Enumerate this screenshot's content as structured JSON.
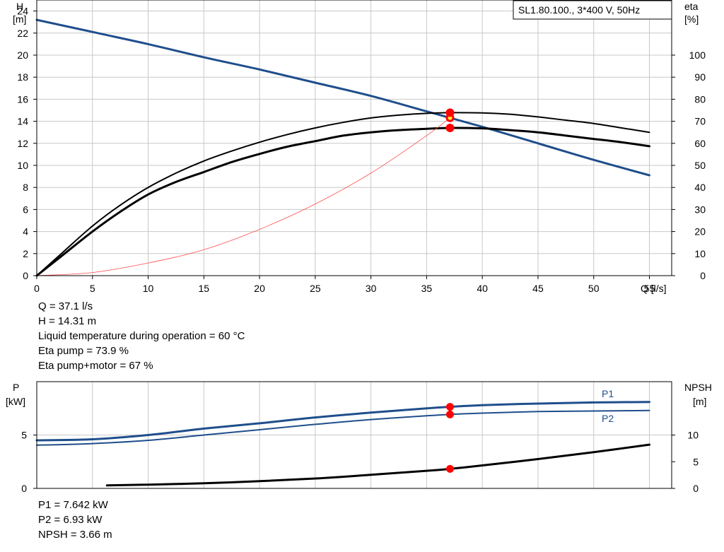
{
  "title": "SL1.80.100., 3*400 V, 50Hz",
  "colors": {
    "head": "#1f4e8c",
    "power": "#1f4e8c",
    "curve": "#000000",
    "system": "#ff4d4d",
    "marker": "#ff0000",
    "marker_center": "#ffeb3b",
    "grid": "#c8c8c8"
  },
  "operating_point": {
    "lines": [
      "Q = 37.1 l/s",
      "H = 14.31 m",
      "Liquid temperature during operation = 60 °C",
      "Eta pump = 73.9 %",
      "Eta pump+motor = 67 %"
    ]
  },
  "power_point": {
    "lines": [
      "P1 = 7.642 kW",
      "P2 = 6.93 kW",
      "NPSH = 3.66 m"
    ]
  },
  "chart_data": [
    {
      "type": "line",
      "y_left_label_top": "H",
      "y_left_label_bottom": "[m]",
      "y_right_label_top": "eta",
      "y_right_label_bottom": "[%]",
      "xlabel": "Q [l/s]",
      "xlim": [
        0,
        57
      ],
      "ylim": [
        0,
        25
      ],
      "y2lim": [
        0,
        125
      ],
      "xticks": [
        "0",
        "5",
        "10",
        "15",
        "20",
        "25",
        "30",
        "35",
        "40",
        "45",
        "50",
        "55"
      ],
      "yticks": [
        "0",
        "2",
        "4",
        "6",
        "8",
        "10",
        "12",
        "14",
        "16",
        "18",
        "20",
        "22",
        "24"
      ],
      "y2ticks": [
        "0",
        "10",
        "20",
        "30",
        "40",
        "50",
        "60",
        "70",
        "80",
        "90",
        "100"
      ],
      "grid": true,
      "series": [
        {
          "key": "head",
          "axis": "left",
          "width": 3,
          "x": [
            0,
            5,
            10,
            15,
            20,
            25,
            30,
            35,
            40,
            45,
            50,
            55
          ],
          "y": [
            23.2,
            22.1,
            21.0,
            19.8,
            18.7,
            17.5,
            16.3,
            14.9,
            13.5,
            12.0,
            10.5,
            9.1
          ]
        },
        {
          "key": "eta_pump_motor",
          "axis": "right",
          "width": 3,
          "x": [
            0,
            2.5,
            5,
            7.5,
            10,
            12.5,
            15,
            17.5,
            20,
            22.5,
            25,
            27.5,
            30,
            32.5,
            35,
            37.1,
            40,
            42.5,
            45,
            47.5,
            50,
            52.5,
            55
          ],
          "y": [
            0,
            10,
            20,
            29,
            36.8,
            42.5,
            47,
            51.5,
            55.2,
            58.5,
            61,
            63.5,
            65,
            66,
            66.6,
            67,
            66.8,
            66,
            65,
            63.5,
            62,
            60.5,
            58.7
          ]
        },
        {
          "key": "eta_pump",
          "axis": "right",
          "width": 2,
          "x": [
            0,
            2.5,
            5,
            7.5,
            10,
            12.5,
            15,
            17.5,
            20,
            22.5,
            25,
            27.5,
            30,
            32.5,
            35,
            37.1,
            40,
            42.5,
            45,
            47.5,
            50,
            52.5,
            55
          ],
          "y": [
            0,
            11.3,
            22.5,
            32,
            40,
            46.5,
            52,
            56.5,
            60.5,
            64,
            67,
            69.5,
            71.5,
            72.8,
            73.6,
            73.9,
            73.8,
            73.2,
            72,
            70.5,
            69,
            67,
            65
          ]
        },
        {
          "key": "system",
          "axis": "left",
          "width": 0.8,
          "x": [
            0,
            5,
            10,
            15,
            20,
            25,
            30,
            35,
            37.1
          ],
          "y": [
            0,
            0.28,
            1.15,
            2.35,
            4.2,
            6.5,
            9.3,
            12.7,
            14.31
          ]
        }
      ],
      "points": [
        {
          "axis": "left",
          "x": 37.1,
          "y": 14.31,
          "style": "yellow"
        },
        {
          "axis": "right",
          "x": 37.1,
          "y": 73.9,
          "style": "red"
        },
        {
          "axis": "right",
          "x": 37.1,
          "y": 67,
          "style": "red"
        }
      ],
      "annotation": "SL1.80.100., 3*400 V, 50Hz"
    },
    {
      "type": "line",
      "y_left_label_top": "P",
      "y_left_label_bottom": "[kW]",
      "y_right_label_top": "NPSH",
      "y_right_label_bottom": "[m]",
      "xlim": [
        0,
        57
      ],
      "ylim": [
        0,
        10
      ],
      "y2lim": [
        0,
        20
      ],
      "yticks": [
        "0",
        "5"
      ],
      "y2ticks": [
        "0",
        "5",
        "10"
      ],
      "grid": true,
      "series": [
        {
          "name": "P1",
          "key": "p1",
          "axis": "left",
          "width": 3,
          "x": [
            0,
            5,
            10,
            15,
            20,
            25,
            30,
            35,
            37.1,
            40,
            45,
            50,
            55
          ],
          "y": [
            4.5,
            4.6,
            5.0,
            5.6,
            6.1,
            6.65,
            7.1,
            7.5,
            7.642,
            7.8,
            7.95,
            8.05,
            8.1
          ]
        },
        {
          "name": "P2",
          "key": "p2",
          "axis": "left",
          "width": 2,
          "x": [
            0,
            5,
            10,
            15,
            20,
            25,
            30,
            35,
            37.1,
            40,
            45,
            50,
            55
          ],
          "y": [
            4.05,
            4.2,
            4.5,
            5.0,
            5.5,
            6.0,
            6.45,
            6.8,
            6.93,
            7.05,
            7.2,
            7.25,
            7.3
          ]
        },
        {
          "key": "npsh",
          "axis": "right",
          "width": 3,
          "x": [
            6.3,
            10,
            15,
            20,
            25,
            30,
            35,
            37.1,
            40,
            45,
            50,
            55
          ],
          "y": [
            0.55,
            0.7,
            0.95,
            1.35,
            1.85,
            2.55,
            3.3,
            3.66,
            4.3,
            5.5,
            6.8,
            8.2
          ]
        }
      ],
      "points": [
        {
          "axis": "left",
          "x": 37.1,
          "y": 7.642,
          "style": "red"
        },
        {
          "axis": "left",
          "x": 37.1,
          "y": 6.93,
          "style": "red"
        },
        {
          "axis": "right",
          "x": 37.1,
          "y": 3.66,
          "style": "red"
        }
      ]
    }
  ]
}
